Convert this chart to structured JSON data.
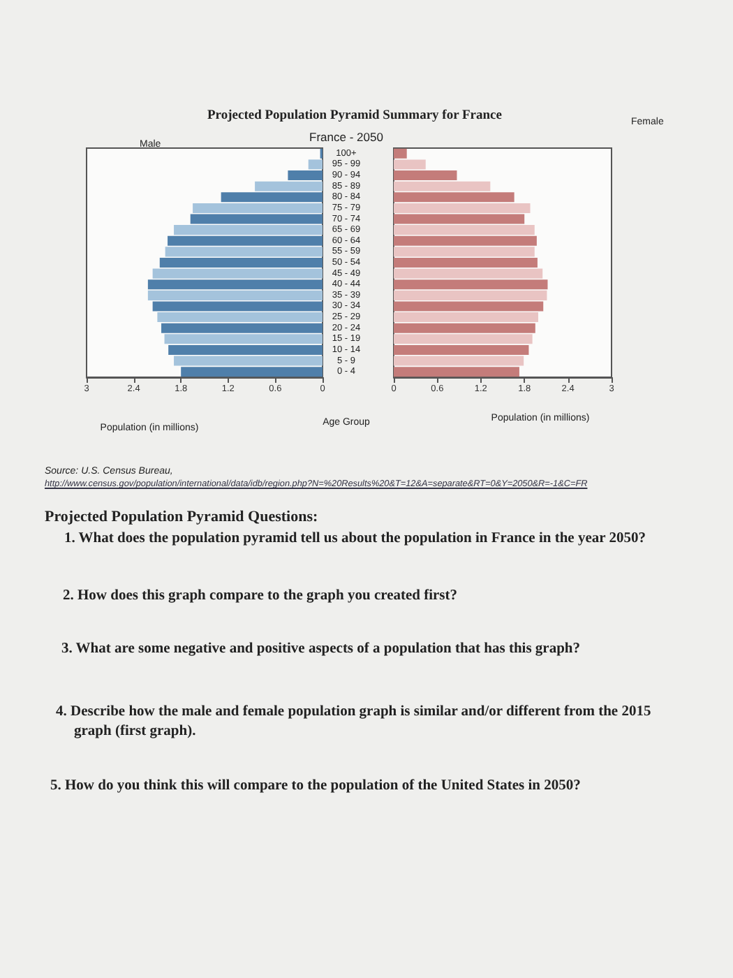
{
  "chart_data": [
    {
      "type": "bar",
      "orientation": "horizontal",
      "title": "Projected Population Pyramid Summary for France",
      "subtitle": "France - 2050",
      "xlabel": "Population (in millions)",
      "ylabel": "Age Group",
      "categories": [
        "100+",
        "95 - 99",
        "90 - 94",
        "85 - 89",
        "80 - 84",
        "75 - 79",
        "70 - 74",
        "65 - 69",
        "60 - 64",
        "55 - 59",
        "50 - 54",
        "45 - 49",
        "40 - 44",
        "35 - 39",
        "30 - 34",
        "25 - 29",
        "20 - 24",
        "15 - 19",
        "10 - 14",
        "5 - 9",
        "0 - 4"
      ],
      "series": [
        {
          "name": "Male",
          "colors": [
            "#4f7faa",
            "#a4c3dc",
            "#4f7faa",
            "#a4c3dc",
            "#4f7faa",
            "#a4c3dc",
            "#4f7faa",
            "#a4c3dc",
            "#4f7faa",
            "#a4c3dc",
            "#4f7faa",
            "#a4c3dc",
            "#4f7faa",
            "#a4c3dc",
            "#4f7faa",
            "#a4c3dc",
            "#4f7faa",
            "#a4c3dc",
            "#4f7faa",
            "#a4c3dc",
            "#4f7faa"
          ],
          "values": [
            0.03,
            0.18,
            0.44,
            0.86,
            1.29,
            1.65,
            1.68,
            1.89,
            1.97,
            2.0,
            2.07,
            2.16,
            2.22,
            2.22,
            2.16,
            2.1,
            2.05,
            2.01,
            1.96,
            1.89,
            1.8
          ]
        }
      ],
      "xlim": [
        3,
        0
      ],
      "xticks": [
        0,
        0.6,
        1.2,
        1.8,
        2.4,
        3
      ],
      "grid": false,
      "annotations": [
        "Source: U.S. Census Bureau,",
        "http://www.census.gov/population/international/data/idb/region.php?N=%20Results%20&T=12&A=separate&RT=0&Y=2050&R=-1&C=FR",
        "Projected Population Pyramid Questions:",
        "1. What does the population pyramid tell us about the population in France in the year 2050?",
        "2. How does this graph compare to the graph you created first?",
        "3. What are some negative and positive aspects of a population that has this graph?",
        "4. Describe how the male and female population graph is similar and/or different from the 2015 graph (first graph).",
        "5. How do you think this will compare to the population of the United States in 2050?"
      ]
    },
    {
      "type": "bar",
      "orientation": "horizontal",
      "xlabel": "Population (in millions)",
      "categories": [
        null,
        null,
        null,
        null,
        null,
        null,
        null,
        null,
        null,
        null,
        null,
        null,
        null,
        null,
        null,
        null,
        null,
        null,
        null,
        null,
        null
      ],
      "series": [
        {
          "name": "Female",
          "colors": [
            "#c47c7a",
            "#e9c4c3",
            "#c47c7a",
            "#e9c4c3",
            "#c47c7a",
            "#e9c4c3",
            "#c47c7a",
            "#e9c4c3",
            "#c47c7a",
            "#e9c4c3",
            "#c47c7a",
            "#e9c4c3",
            "#c47c7a",
            "#e9c4c3",
            "#c47c7a",
            "#e9c4c3",
            "#c47c7a",
            "#e9c4c3",
            "#c47c7a",
            "#e9c4c3",
            "#c47c7a"
          ],
          "values": [
            0.18,
            0.44,
            0.87,
            1.33,
            1.66,
            1.88,
            1.8,
            1.94,
            1.97,
            1.94,
            1.98,
            2.05,
            2.12,
            2.11,
            2.06,
            1.99,
            1.95,
            1.91,
            1.86,
            1.79,
            1.73
          ]
        }
      ],
      "xlim": [
        0,
        3
      ],
      "xticks": [
        0,
        0.6,
        1.2,
        1.8,
        2.4,
        3
      ],
      "grid": false
    }
  ]
}
